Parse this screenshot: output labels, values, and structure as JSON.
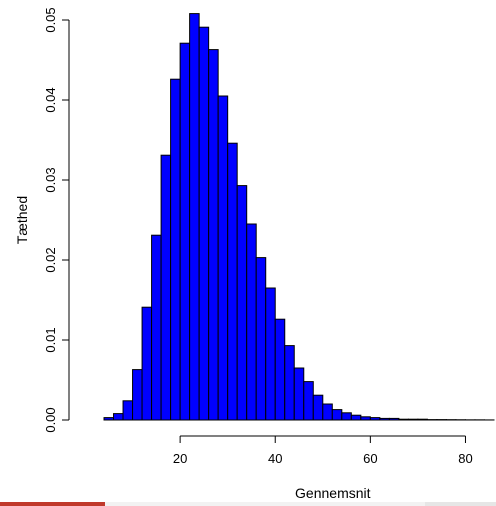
{
  "chart_data": {
    "type": "bar",
    "xlabel": "Gennemsnit",
    "ylabel": "Tæthed",
    "xlim": [
      0,
      86
    ],
    "ylim": [
      0,
      0.05
    ],
    "x_ticks": [
      20,
      40,
      60,
      80
    ],
    "y_ticks": [
      0.0,
      0.01,
      0.02,
      0.03,
      0.04,
      0.05
    ],
    "y_tick_labels": [
      "0.00",
      "0.01",
      "0.02",
      "0.03",
      "0.04",
      "0.05"
    ],
    "bin_width": 2,
    "bin_starts": [
      4,
      6,
      8,
      10,
      12,
      14,
      16,
      18,
      20,
      22,
      24,
      26,
      28,
      30,
      32,
      34,
      36,
      38,
      40,
      42,
      44,
      46,
      48,
      50,
      52,
      54,
      56,
      58,
      60,
      62,
      64,
      66,
      68,
      70,
      72,
      74,
      76,
      78,
      80,
      82,
      84
    ],
    "values": [
      0.0003,
      0.0008,
      0.0024,
      0.0063,
      0.0141,
      0.0231,
      0.0331,
      0.0426,
      0.0471,
      0.0508,
      0.0491,
      0.0463,
      0.0405,
      0.0346,
      0.0293,
      0.0245,
      0.0203,
      0.0165,
      0.0126,
      0.0093,
      0.0065,
      0.0048,
      0.0031,
      0.002,
      0.0013,
      0.0009,
      0.0006,
      0.0004,
      0.0003,
      0.0002,
      0.0002,
      0.0001,
      0.0001,
      0.0001,
      5e-05,
      5e-05,
      4e-05,
      3e-05,
      2e-05,
      2e-05,
      1e-05
    ],
    "bar_color": "#0000ff",
    "bar_edge_color": "#000000",
    "grid": false
  },
  "colors": {
    "strip_left": "#c0392b",
    "strip_mid": "#f2f2f2",
    "strip_right": "#e6e6e6"
  }
}
